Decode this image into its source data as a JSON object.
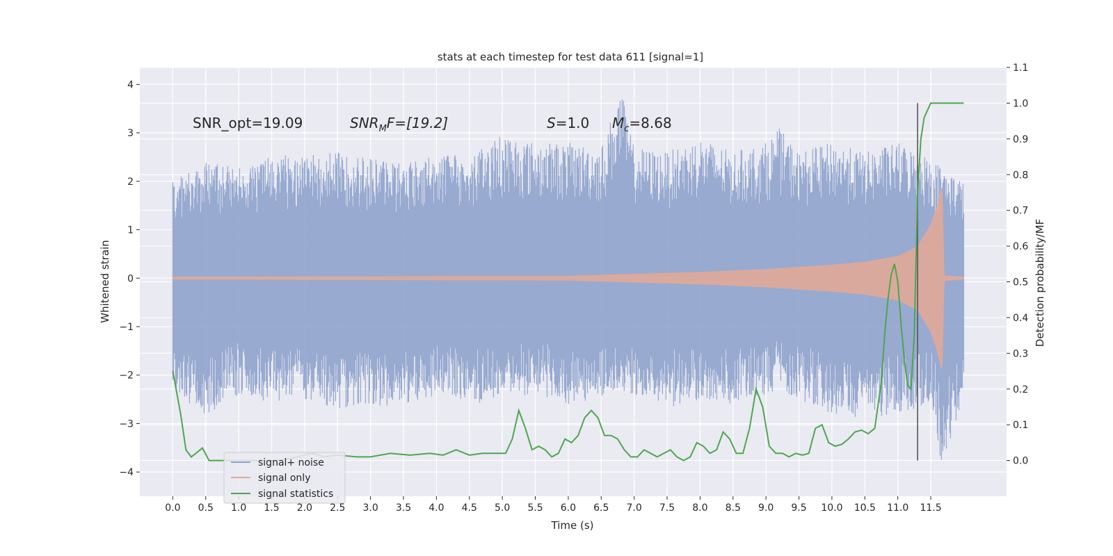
{
  "chart_data": {
    "type": "line",
    "title": "stats at each timestep for test data 611 [signal=1]",
    "xlabel": "Time (s)",
    "ylabel": "Whitened strain",
    "y2label": "Detection probability/MF",
    "xlim": [
      -0.5,
      12.65
    ],
    "ylim": [
      -4.5,
      4.35
    ],
    "y2lim": [
      -0.1,
      1.1
    ],
    "x_ticks": [
      0.0,
      0.5,
      1.0,
      1.5,
      2.0,
      2.5,
      3.0,
      3.5,
      4.0,
      4.5,
      5.0,
      5.5,
      6.0,
      6.5,
      7.0,
      7.5,
      8.0,
      8.5,
      9.0,
      9.5,
      10.0,
      10.5,
      11.0,
      11.5
    ],
    "x_tick_labels": [
      "0.0",
      "0.5",
      "1.0",
      "1.5",
      "2.0",
      "2.5",
      "3.0",
      "3.5",
      "4.0",
      "4.5",
      "5.0",
      "5.5",
      "6.0",
      "6.5",
      "7.0",
      "7.5",
      "8.0",
      "8.5",
      "9.0",
      "9.5",
      "10.0",
      "10.5",
      "11.0",
      "11.5"
    ],
    "y_ticks": [
      4,
      3,
      2,
      1,
      0,
      -1,
      -2,
      -3,
      -4
    ],
    "y_tick_labels": [
      "4",
      "3",
      "2",
      "1",
      "0",
      "−1",
      "−2",
      "−3",
      "−4"
    ],
    "y2_ticks": [
      1.1,
      1.0,
      0.9,
      0.8,
      0.7,
      0.6,
      0.5,
      0.4,
      0.3,
      0.2,
      0.1,
      0.0
    ],
    "y2_tick_labels": [
      "1.1",
      "1.0",
      "0.9",
      "0.8",
      "0.7",
      "0.6",
      "0.5",
      "0.4",
      "0.3",
      "0.2",
      "0.1",
      "0.0"
    ],
    "grid": true,
    "legend": {
      "placement": "lower-left"
    },
    "annotations": {
      "snr_opt": "SNR_opt=19.09",
      "snr_mf_main": "SNR",
      "snr_mf_sub": "M",
      "snr_mf_rest": "F=[19.2]",
      "s_sym": "S",
      "s_val": "=1.0",
      "mc_sym": "M",
      "mc_sub": "c",
      "mc_val": "=8.68"
    },
    "marker_time": 11.3,
    "series": [
      {
        "name": "signal+ noise",
        "axis": "left",
        "color": "#8fa3cc",
        "t_range": [
          0.0,
          12.0
        ],
        "envelope_peaks": [
          [
            0.0,
            2.0,
            -2.3
          ],
          [
            0.5,
            2.4,
            -2.9
          ],
          [
            1.0,
            2.3,
            -2.4
          ],
          [
            1.5,
            2.5,
            -2.6
          ],
          [
            2.0,
            2.6,
            -2.5
          ],
          [
            2.5,
            2.6,
            -2.7
          ],
          [
            3.0,
            2.5,
            -2.6
          ],
          [
            3.5,
            2.4,
            -2.7
          ],
          [
            4.0,
            2.6,
            -2.4
          ],
          [
            4.5,
            2.5,
            -2.6
          ],
          [
            5.0,
            3.0,
            -2.5
          ],
          [
            5.5,
            2.8,
            -2.4
          ],
          [
            6.0,
            2.8,
            -2.6
          ],
          [
            6.5,
            2.7,
            -2.5
          ],
          [
            6.8,
            3.9,
            -2.4
          ],
          [
            7.0,
            2.7,
            -2.4
          ],
          [
            7.5,
            2.6,
            -2.7
          ],
          [
            8.0,
            2.9,
            -2.5
          ],
          [
            8.5,
            2.6,
            -2.6
          ],
          [
            9.0,
            2.8,
            -2.4
          ],
          [
            9.2,
            3.1,
            -2.3
          ],
          [
            9.5,
            2.6,
            -2.5
          ],
          [
            10.0,
            2.8,
            -2.8
          ],
          [
            10.5,
            2.6,
            -2.9
          ],
          [
            11.0,
            2.8,
            -2.8
          ],
          [
            11.5,
            2.5,
            -2.6
          ],
          [
            11.67,
            2.3,
            -4.0
          ],
          [
            12.0,
            2.0,
            -2.4
          ]
        ]
      },
      {
        "name": "signal only",
        "axis": "left",
        "color": "#e4a994",
        "t_range": [
          0.0,
          12.0
        ],
        "amplitude_points": [
          [
            0.0,
            0.02
          ],
          [
            6.0,
            0.04
          ],
          [
            8.0,
            0.12
          ],
          [
            9.0,
            0.18
          ],
          [
            10.0,
            0.27
          ],
          [
            10.5,
            0.33
          ],
          [
            11.0,
            0.45
          ],
          [
            11.3,
            0.65
          ],
          [
            11.5,
            1.1
          ],
          [
            11.6,
            1.5
          ],
          [
            11.67,
            1.9
          ],
          [
            11.7,
            0.05
          ],
          [
            12.0,
            0.02
          ]
        ]
      },
      {
        "name": "signal statistics",
        "axis": "right",
        "color": "#4ea64e",
        "x": [
          0.0,
          0.12,
          0.2,
          0.28,
          0.35,
          0.45,
          0.55,
          0.7,
          1.0,
          1.3,
          1.6,
          1.9,
          2.1,
          2.3,
          2.5,
          2.8,
          3.0,
          3.3,
          3.6,
          3.9,
          4.1,
          4.3,
          4.5,
          4.7,
          4.9,
          5.05,
          5.15,
          5.25,
          5.35,
          5.45,
          5.55,
          5.65,
          5.75,
          5.85,
          5.95,
          6.05,
          6.15,
          6.25,
          6.35,
          6.45,
          6.55,
          6.65,
          6.75,
          6.85,
          6.95,
          7.05,
          7.15,
          7.25,
          7.35,
          7.45,
          7.55,
          7.65,
          7.75,
          7.85,
          7.95,
          8.05,
          8.15,
          8.25,
          8.35,
          8.45,
          8.55,
          8.65,
          8.75,
          8.85,
          8.95,
          9.05,
          9.15,
          9.25,
          9.35,
          9.45,
          9.55,
          9.65,
          9.75,
          9.85,
          9.95,
          10.05,
          10.15,
          10.25,
          10.35,
          10.45,
          10.55,
          10.65,
          10.75,
          10.8,
          10.85,
          10.9,
          10.95,
          11.0,
          11.05,
          11.1,
          11.15,
          11.2,
          11.25,
          11.3,
          11.35,
          11.4,
          11.45,
          11.5,
          11.6,
          11.7,
          11.8,
          11.9,
          12.0
        ],
        "y": [
          0.25,
          0.13,
          0.03,
          0.01,
          0.02,
          0.035,
          0.0,
          0.0,
          0.0,
          0.0,
          0.0,
          0.01,
          0.02,
          0.01,
          0.015,
          0.01,
          0.01,
          0.02,
          0.015,
          0.02,
          0.015,
          0.03,
          0.015,
          0.02,
          0.02,
          0.02,
          0.06,
          0.14,
          0.09,
          0.03,
          0.04,
          0.03,
          0.01,
          0.02,
          0.06,
          0.05,
          0.07,
          0.12,
          0.14,
          0.12,
          0.07,
          0.07,
          0.06,
          0.03,
          0.01,
          0.01,
          0.03,
          0.02,
          0.01,
          0.02,
          0.03,
          0.01,
          0.0,
          0.01,
          0.05,
          0.04,
          0.02,
          0.03,
          0.08,
          0.06,
          0.02,
          0.02,
          0.09,
          0.2,
          0.15,
          0.04,
          0.02,
          0.02,
          0.01,
          0.02,
          0.015,
          0.02,
          0.09,
          0.1,
          0.05,
          0.04,
          0.045,
          0.06,
          0.08,
          0.085,
          0.075,
          0.09,
          0.22,
          0.35,
          0.45,
          0.52,
          0.55,
          0.5,
          0.38,
          0.28,
          0.21,
          0.2,
          0.35,
          0.75,
          0.9,
          0.96,
          0.98,
          1.0,
          1.0,
          1.0,
          1.0,
          1.0,
          1.0
        ]
      }
    ]
  }
}
